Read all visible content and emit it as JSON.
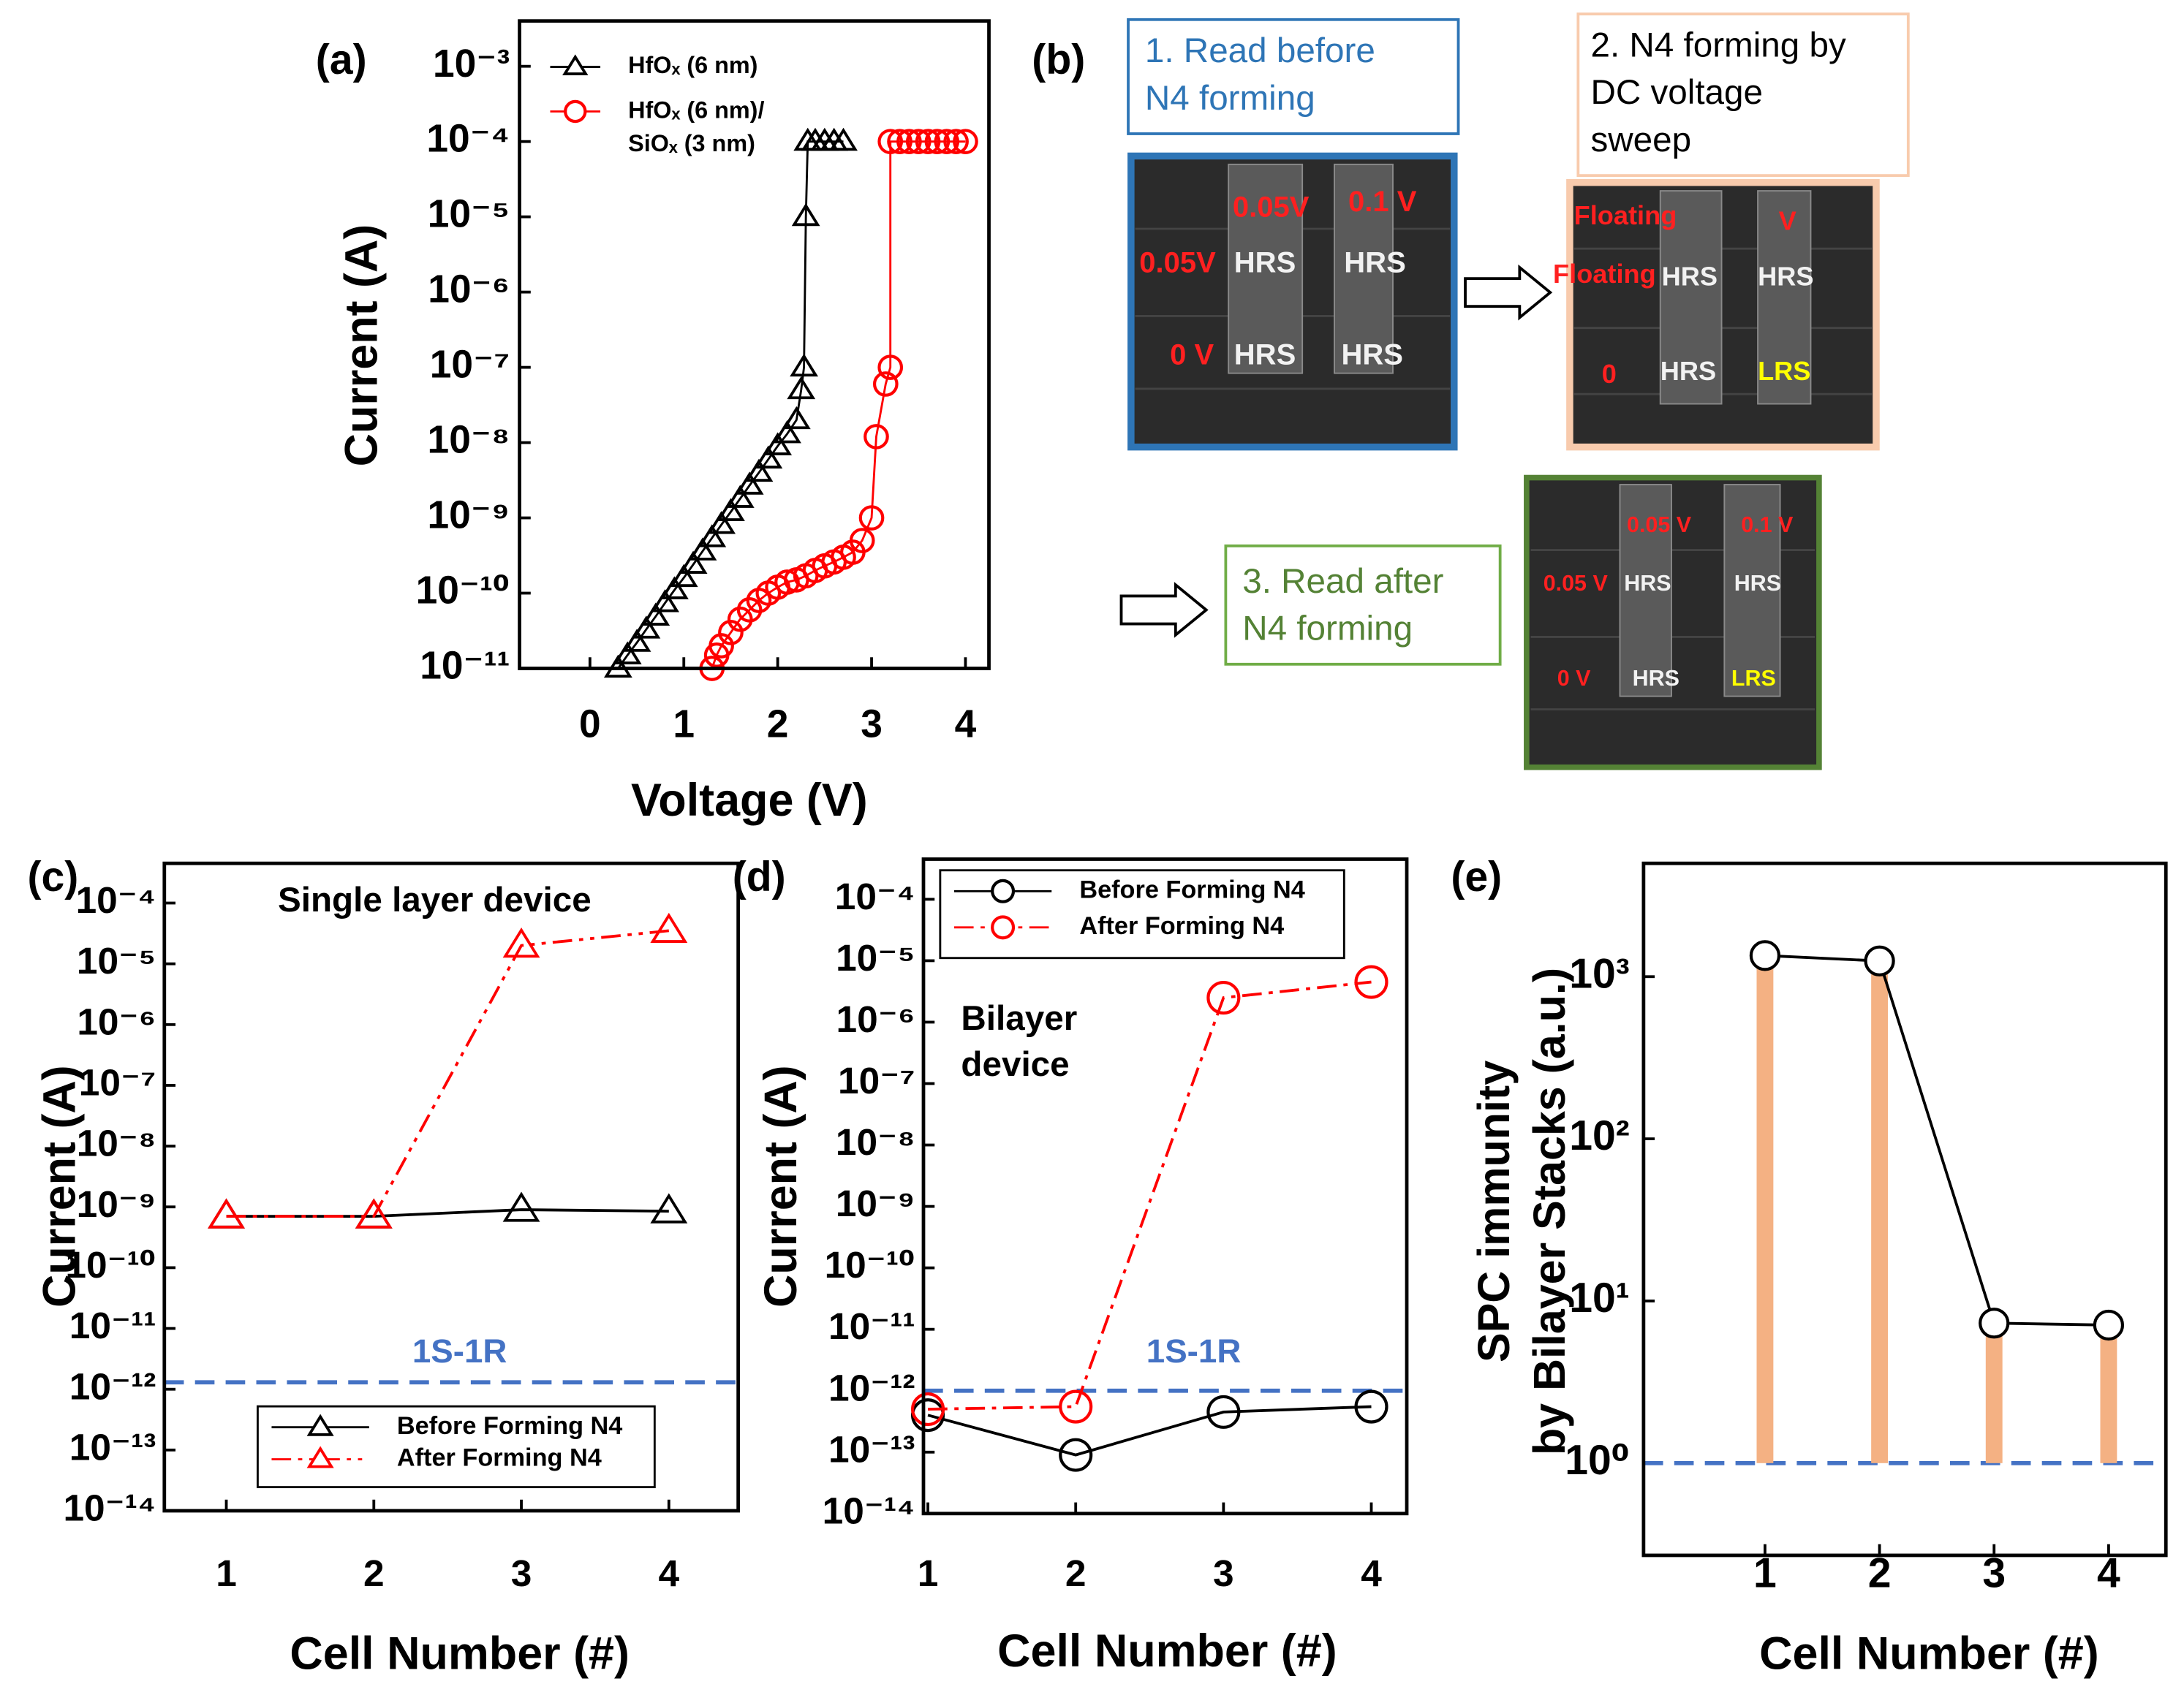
{
  "chart_data": [
    {
      "type": "line",
      "panel_label": "(a)",
      "xlabel": "Voltage (V)",
      "ylabel": "Current (A)",
      "log_y": true,
      "xlim": [
        -0.75,
        4.25
      ],
      "xticks": [
        0,
        1,
        2,
        3,
        4
      ],
      "ylim": [
        1e-11,
        0.004
      ],
      "yticks": [
        {
          "value": 0.001,
          "label": "10⁻³"
        },
        {
          "value": 0.0001,
          "label": "10⁻⁴"
        },
        {
          "value": 1e-05,
          "label": "10⁻⁵"
        },
        {
          "value": 1e-06,
          "label": "10⁻⁶"
        },
        {
          "value": 1e-07,
          "label": "10⁻⁷"
        },
        {
          "value": 1e-08,
          "label": "10⁻⁸"
        },
        {
          "value": 1e-09,
          "label": "10⁻⁹"
        },
        {
          "value": 1e-10,
          "label": "10⁻¹⁰"
        },
        {
          "value": 1e-11,
          "label": "10⁻¹¹"
        }
      ],
      "legend": "upper left",
      "series": [
        {
          "name": "HfOₓ (6 nm)",
          "color": "#000000",
          "marker": "triangle",
          "line_style": "solid",
          "x": [
            0.3,
            0.4,
            0.5,
            0.6,
            0.7,
            0.8,
            0.9,
            1.0,
            1.1,
            1.2,
            1.3,
            1.4,
            1.5,
            1.6,
            1.7,
            1.8,
            1.9,
            2.0,
            2.1,
            2.2,
            2.25,
            2.28,
            2.3,
            2.32,
            2.4,
            2.5,
            2.6,
            2.7
          ],
          "values": [
            1e-11,
            1.5e-11,
            2.2e-11,
            3.3e-11,
            4.9e-11,
            7.4e-11,
            1.1e-10,
            1.6e-10,
            2.4e-10,
            3.6e-10,
            5.4e-10,
            8.1e-10,
            1.2e-09,
            1.8e-09,
            2.7e-09,
            4e-09,
            6e-09,
            9e-09,
            1.3e-08,
            2e-08,
            5e-08,
            1e-07,
            1e-05,
            0.0001,
            0.0001,
            0.0001,
            0.0001,
            0.0001
          ]
        },
        {
          "name": "HfOₓ (6 nm)/SiOₓ (3 nm)",
          "color": "#ff0000",
          "marker": "circle",
          "line_style": "solid",
          "x": [
            1.3,
            1.35,
            1.4,
            1.5,
            1.6,
            1.7,
            1.8,
            1.9,
            2.0,
            2.1,
            2.2,
            2.3,
            2.4,
            2.5,
            2.6,
            2.7,
            2.8,
            2.9,
            3.0,
            3.05,
            3.15,
            3.2,
            3.2,
            3.3,
            3.4,
            3.5,
            3.6,
            3.7,
            3.8,
            3.9,
            4.0
          ],
          "values": [
            1e-11,
            1.5e-11,
            2e-11,
            3e-11,
            4.5e-11,
            6e-11,
            8e-11,
            1e-10,
            1.2e-10,
            1.4e-10,
            1.5e-10,
            1.7e-10,
            2e-10,
            2.3e-10,
            2.6e-10,
            3e-10,
            3.5e-10,
            5e-10,
            1e-09,
            1.2e-08,
            6e-08,
            1e-07,
            0.0001,
            0.0001,
            0.0001,
            0.0001,
            0.0001,
            0.0001,
            0.0001,
            0.0001,
            0.0001
          ]
        }
      ]
    },
    {
      "type": "line",
      "panel_label": "(c)",
      "xlabel": "Cell Number (#)",
      "ylabel": "Current (A)",
      "log_y": true,
      "x": [
        1,
        2,
        3,
        4
      ],
      "xlim": [
        0.58,
        4.47
      ],
      "xticks": [
        1,
        2,
        3,
        4
      ],
      "ylim": [
        1e-14,
        0.00045
      ],
      "yticks": [
        {
          "value": 0.0001,
          "label": "10⁻⁴"
        },
        {
          "value": 1e-05,
          "label": "10⁻⁵"
        },
        {
          "value": 1e-06,
          "label": "10⁻⁶"
        },
        {
          "value": 1e-07,
          "label": "10⁻⁷"
        },
        {
          "value": 1e-08,
          "label": "10⁻⁸"
        },
        {
          "value": 1e-09,
          "label": "10⁻⁹"
        },
        {
          "value": 1e-10,
          "label": "10⁻¹⁰"
        },
        {
          "value": 1e-11,
          "label": "10⁻¹¹"
        },
        {
          "value": 1e-12,
          "label": "10⁻¹²"
        },
        {
          "value": 1e-13,
          "label": "10⁻¹³"
        },
        {
          "value": 1e-14,
          "label": "10⁻¹⁴"
        }
      ],
      "legend": "lower left",
      "annotations": [
        "Single layer device"
      ],
      "reference_line": {
        "value": 1.3e-12,
        "label": "1S-1R",
        "color": "#4472c4"
      },
      "series": [
        {
          "name": "Before Forming N4",
          "color": "#000000",
          "marker": "triangle",
          "line_style": "solid",
          "values": [
            7e-10,
            7e-10,
            9e-10,
            8.5e-10
          ]
        },
        {
          "name": "After Forming N4",
          "color": "#ff0000",
          "marker": "triangle",
          "line_style": "dash-dot-dot",
          "values": [
            7e-10,
            7e-10,
            2e-05,
            3.5e-05
          ]
        }
      ]
    },
    {
      "type": "line",
      "panel_label": "(d)",
      "xlabel": "Cell Number (#)",
      "ylabel": "Current (A)",
      "log_y": true,
      "x": [
        1,
        2,
        3,
        4
      ],
      "xlim": [
        0.97,
        4.24
      ],
      "xticks": [
        1,
        2,
        3,
        4
      ],
      "ylim": [
        1e-14,
        0.00045
      ],
      "yticks": [
        {
          "value": 0.0001,
          "label": "10⁻⁴"
        },
        {
          "value": 1e-05,
          "label": "10⁻⁵"
        },
        {
          "value": 1e-06,
          "label": "10⁻⁶"
        },
        {
          "value": 1e-07,
          "label": "10⁻⁷"
        },
        {
          "value": 1e-08,
          "label": "10⁻⁸"
        },
        {
          "value": 1e-09,
          "label": "10⁻⁹"
        },
        {
          "value": 1e-10,
          "label": "10⁻¹⁰"
        },
        {
          "value": 1e-11,
          "label": "10⁻¹¹"
        },
        {
          "value": 1e-12,
          "label": "10⁻¹²"
        },
        {
          "value": 1e-13,
          "label": "10⁻¹³"
        },
        {
          "value": 1e-14,
          "label": "10⁻¹⁴"
        }
      ],
      "legend": "upper left",
      "annotations": [
        "Bilayer",
        "device"
      ],
      "reference_line": {
        "value": 1e-12,
        "label": "1S-1R",
        "color": "#4472c4"
      },
      "series": [
        {
          "name": "Before Forming N4",
          "color": "#000000",
          "marker": "circle",
          "line_style": "solid",
          "values": [
            4e-13,
            9e-14,
            4.5e-13,
            5.5e-13
          ]
        },
        {
          "name": "After Forming N4",
          "color": "#ff0000",
          "marker": "circle",
          "line_style": "dash-dot",
          "values": [
            5e-13,
            5.5e-13,
            2.5e-06,
            4.5e-06
          ]
        }
      ]
    },
    {
      "type": "bar_line",
      "panel_label": "(e)",
      "xlabel": "Cell Number (#)",
      "ylabel": [
        "SPC immunity",
        "by Bilayer Stacks (a.u.)"
      ],
      "log_y": true,
      "x": [
        1,
        2,
        3,
        4
      ],
      "xlim": [
        -0.06,
        4.5
      ],
      "xticks": [
        1,
        2,
        3,
        4
      ],
      "ylim": [
        0.27,
        5000
      ],
      "yticks": [
        {
          "value": 1,
          "label": "10⁰"
        },
        {
          "value": 10,
          "label": "10¹"
        },
        {
          "value": 100,
          "label": "10²"
        },
        {
          "value": 1000,
          "label": "10³"
        }
      ],
      "reference_line": {
        "value": 1,
        "color": "#4472c4"
      },
      "series": [
        {
          "color": "#000000",
          "bar_color": "#f4b183",
          "marker": "circle",
          "line_style": "solid",
          "values": [
            1350,
            1250,
            7.3,
            7.1
          ]
        }
      ]
    }
  ],
  "diagram": {
    "panel_label": "(b)",
    "steps": [
      [
        "1. Read before",
        "N4 forming"
      ],
      [
        "2. N4 forming by",
        "DC voltage",
        "sweep"
      ],
      [
        "3. Read after",
        "N4 forming"
      ]
    ],
    "images": [
      [
        "0.05V",
        "0.1 V",
        "0.05V",
        "HRS",
        "HRS",
        "0 V",
        "HRS",
        "HRS"
      ],
      [
        "Floating",
        "V",
        "Floating",
        "HRS",
        "HRS",
        "0",
        "HRS",
        "LRS"
      ],
      [
        "0.05 V",
        "0.1 V",
        "0.05 V",
        "HRS",
        "HRS",
        "0 V",
        "HRS",
        "LRS"
      ]
    ]
  }
}
